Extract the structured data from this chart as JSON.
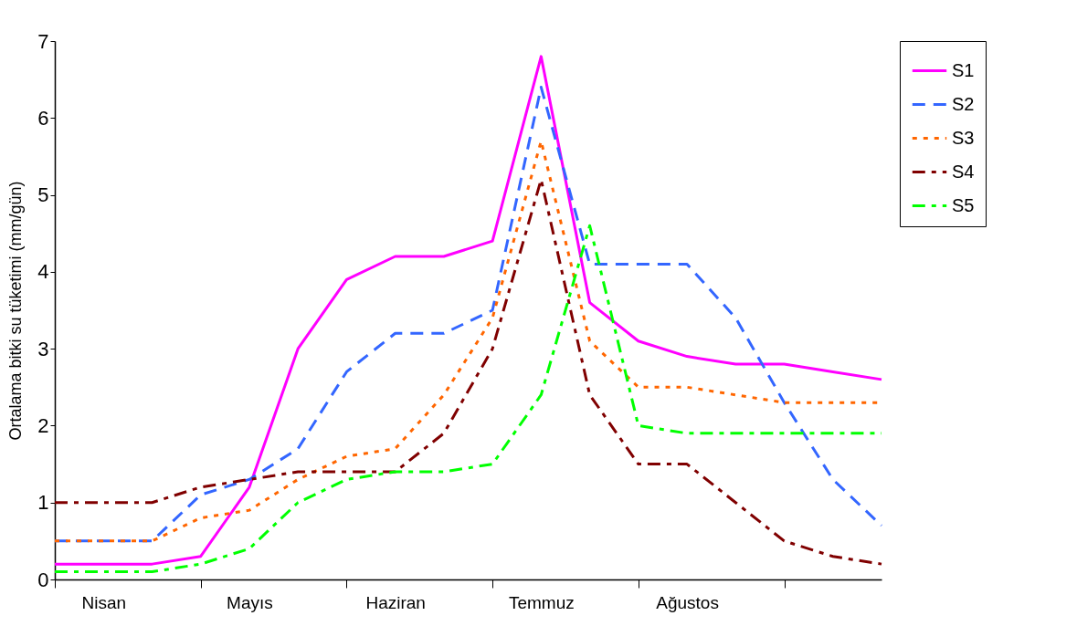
{
  "chart_data": {
    "type": "line",
    "ylabel": "Ortalama bitki su tüketimi (mm/gün)",
    "categories": [
      null,
      "Nisan",
      null,
      null,
      "Mayıs",
      null,
      null,
      "Haziran",
      null,
      null,
      "Temmuz",
      null,
      null,
      "Ağustos",
      null,
      null,
      null,
      null
    ],
    "ylim": [
      0,
      7
    ],
    "yticks": [
      0,
      1,
      2,
      3,
      4,
      5,
      6,
      7
    ],
    "grid": false,
    "legend": "top right",
    "marker": "none",
    "series": [
      {
        "name": "S1",
        "color": "#ff00ff",
        "line_style": "solid",
        "values": [
          0.2,
          0.2,
          0.2,
          0.3,
          1.2,
          3.0,
          3.9,
          4.2,
          4.2,
          4.4,
          6.8,
          3.6,
          3.1,
          2.9,
          2.8,
          2.8,
          2.7,
          2.6
        ]
      },
      {
        "name": "S2",
        "color": "#3366ff",
        "line_style": "dashed",
        "values": [
          0.5,
          0.5,
          0.5,
          1.1,
          1.3,
          1.7,
          2.7,
          3.2,
          3.2,
          3.5,
          6.4,
          4.1,
          4.1,
          4.1,
          3.4,
          2.3,
          1.3,
          0.7
        ]
      },
      {
        "name": "S3",
        "color": "#ff6600",
        "line_style": "dotted",
        "values": [
          0.5,
          0.5,
          0.5,
          0.8,
          0.9,
          1.3,
          1.6,
          1.7,
          2.4,
          3.4,
          5.7,
          3.1,
          2.5,
          2.5,
          2.4,
          2.3,
          2.3,
          2.3
        ]
      },
      {
        "name": "S4",
        "color": "#800000",
        "line_style": "dashdot",
        "values": [
          1.0,
          1.0,
          1.0,
          1.2,
          1.3,
          1.4,
          1.4,
          1.4,
          1.9,
          3.0,
          5.2,
          2.4,
          1.5,
          1.5,
          1.0,
          0.5,
          0.3,
          0.2
        ]
      },
      {
        "name": "S5",
        "color": "#00ff00",
        "line_style": "dashdot",
        "values": [
          0.1,
          0.1,
          0.1,
          0.2,
          0.4,
          1.0,
          1.3,
          1.4,
          1.4,
          1.5,
          2.4,
          4.6,
          2.0,
          1.9,
          1.9,
          1.9,
          1.9,
          1.9
        ]
      }
    ]
  }
}
